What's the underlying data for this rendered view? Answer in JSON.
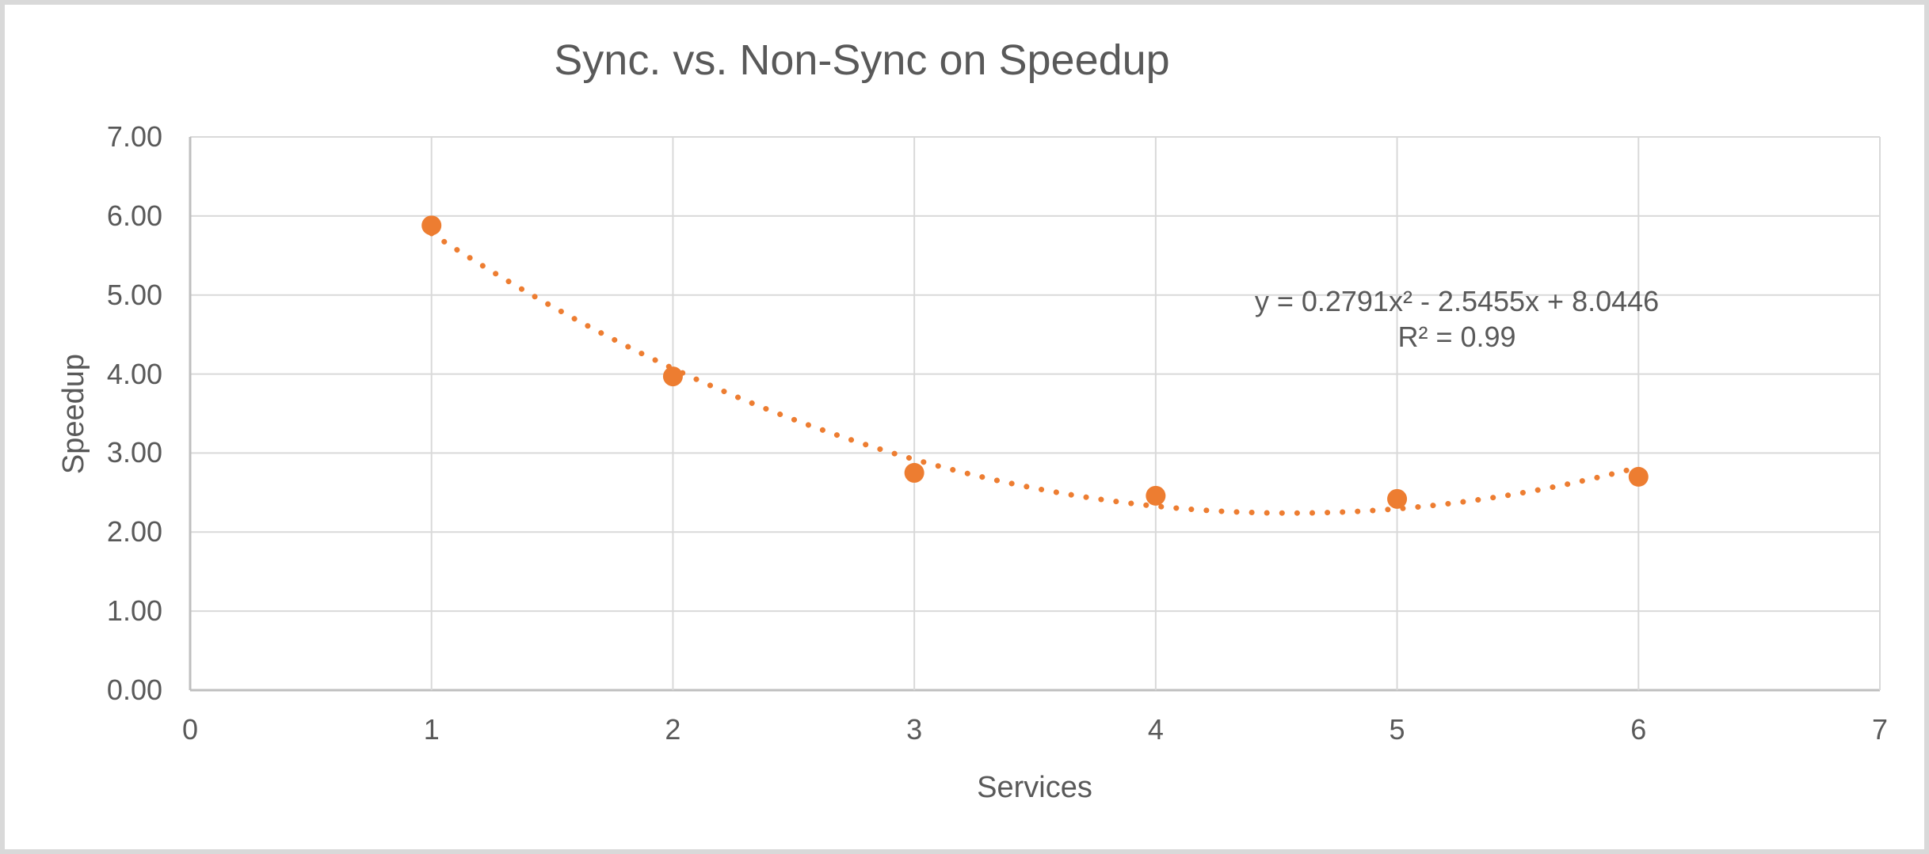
{
  "chart_data": {
    "type": "scatter",
    "title": "Sync. vs. Non-Sync on Speedup",
    "xlabel": "Services",
    "ylabel": "Speedup",
    "x": [
      1,
      2,
      3,
      4,
      5,
      6
    ],
    "y": [
      5.88,
      3.97,
      2.75,
      2.46,
      2.42,
      2.7
    ],
    "series": [
      {
        "name": "Speedup",
        "x": [
          1,
          2,
          3,
          4,
          5,
          6
        ],
        "y": [
          5.88,
          3.97,
          2.75,
          2.46,
          2.42,
          2.7
        ]
      }
    ],
    "xlim": [
      0,
      7
    ],
    "ylim": [
      0,
      7
    ],
    "x_ticks": [
      "0",
      "1",
      "2",
      "3",
      "4",
      "5",
      "6",
      "7"
    ],
    "y_ticks": [
      "0.00",
      "1.00",
      "2.00",
      "3.00",
      "4.00",
      "5.00",
      "6.00",
      "7.00"
    ],
    "grid": true,
    "legend": "none",
    "marker": {
      "shape": "circle",
      "radius_px": 12.5
    },
    "trendline": {
      "type": "polynomial",
      "order": 2,
      "coefficients": {
        "a": 0.2791,
        "b": -2.5455,
        "c": 8.0446
      },
      "equation_label": "y = 0.2791x² - 2.5455x + 8.0446",
      "r_squared_label": "R² = 0.99",
      "x_range": [
        1,
        6
      ],
      "style": "dotted"
    },
    "colors": {
      "series": "#ED7D31",
      "gridline": "#D9D9D9",
      "axis_line": "#BFBFBF",
      "text": "#595959",
      "background": "#FFFFFF",
      "frame_border": "#D9D9D9"
    }
  }
}
